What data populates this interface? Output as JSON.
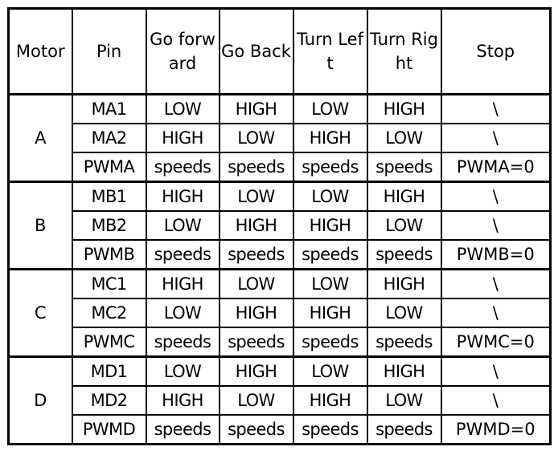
{
  "headers": [
    "Motor",
    "Pin",
    "Go forward",
    "Go Back",
    "Turn Left",
    "Turn Right",
    "Stop"
  ],
  "groups": [
    {
      "motor": "A",
      "rows": [
        [
          "MA1",
          "LOW",
          "HIGH",
          "LOW",
          "HIGH",
          "\\"
        ],
        [
          "MA2",
          "HIGH",
          "LOW",
          "HIGH",
          "LOW",
          "\\"
        ],
        [
          "PWMA",
          "speeds",
          "speeds",
          "speeds",
          "speeds",
          "PWMA=0"
        ]
      ]
    },
    {
      "motor": "B",
      "rows": [
        [
          "MB1",
          "HIGH",
          "LOW",
          "LOW",
          "HIGH",
          "\\"
        ],
        [
          "MB2",
          "LOW",
          "HIGH",
          "HIGH",
          "LOW",
          "\\"
        ],
        [
          "PWMB",
          "speeds",
          "speeds",
          "speeds",
          "speeds",
          "PWMB=0"
        ]
      ]
    },
    {
      "motor": "C",
      "rows": [
        [
          "MC1",
          "HIGH",
          "LOW",
          "LOW",
          "HIGH",
          "\\"
        ],
        [
          "MC2",
          "LOW",
          "HIGH",
          "HIGH",
          "LOW",
          "\\"
        ],
        [
          "PWMC",
          "speeds",
          "speeds",
          "speeds",
          "speeds",
          "PWMC=0"
        ]
      ]
    },
    {
      "motor": "D",
      "rows": [
        [
          "MD1",
          "LOW",
          "HIGH",
          "LOW",
          "HIGH",
          "\\"
        ],
        [
          "MD2",
          "HIGH",
          "LOW",
          "HIGH",
          "LOW",
          "\\"
        ],
        [
          "PWMD",
          "speeds",
          "speeds",
          "speeds",
          "speeds",
          "PWMD=0"
        ]
      ]
    }
  ]
}
